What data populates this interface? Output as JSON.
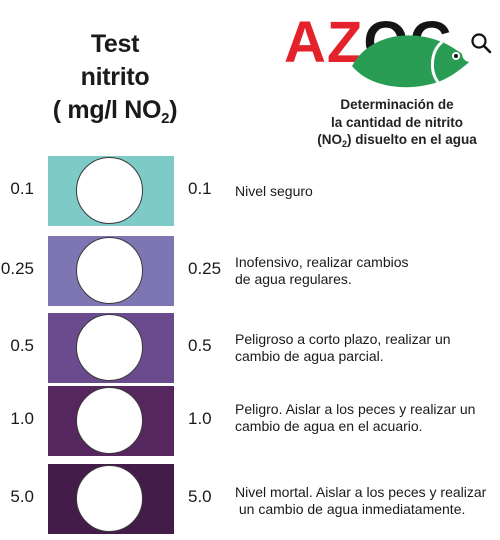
{
  "title": {
    "line1": "Test",
    "line2": "nitrito",
    "line3_main": "( mg/l NO",
    "line3_sub": "2",
    "line3_end": ")"
  },
  "logo": {
    "part1": "AZ",
    "part2": "O",
    "part3": "C",
    "icons": [
      "fish-icon",
      "search-icon"
    ],
    "colors": {
      "red": "#e3222b",
      "green": "#2a9d54",
      "dark": "#151515"
    }
  },
  "subtitle": {
    "line1": "Determinación de",
    "line2": "la cantidad de nitrito",
    "line3_pre": "(NO",
    "line3_sub": "2",
    "line3_post": ") disuelto en el agua"
  },
  "levels": [
    {
      "left": "0.1",
      "right": "0.1",
      "color": "#7ecac6",
      "desc1": "Nivel seguro",
      "desc2": ""
    },
    {
      "left": "0.25",
      "right": "0.25",
      "color": "#7e76b3",
      "desc1": "Inofensivo, realizar cambios",
      "desc2": "de agua regulares."
    },
    {
      "left": "0.5",
      "right": "0.5",
      "color": "#6a4b8d",
      "desc1": "Peligroso a corto plazo, realizar un",
      "desc2": "cambio de agua parcial."
    },
    {
      "left": "1.0",
      "right": "1.0",
      "color": "#56275e",
      "desc1": "Peligro. Aislar a los peces y realizar un",
      "desc2": "cambio de agua en el acuario."
    },
    {
      "left": "5.0",
      "right": "5.0",
      "color": "#441c4a",
      "desc1": "Nivel mortal. Aislar a los peces y realizar",
      "desc2": " un cambio de agua inmediatamente."
    }
  ]
}
